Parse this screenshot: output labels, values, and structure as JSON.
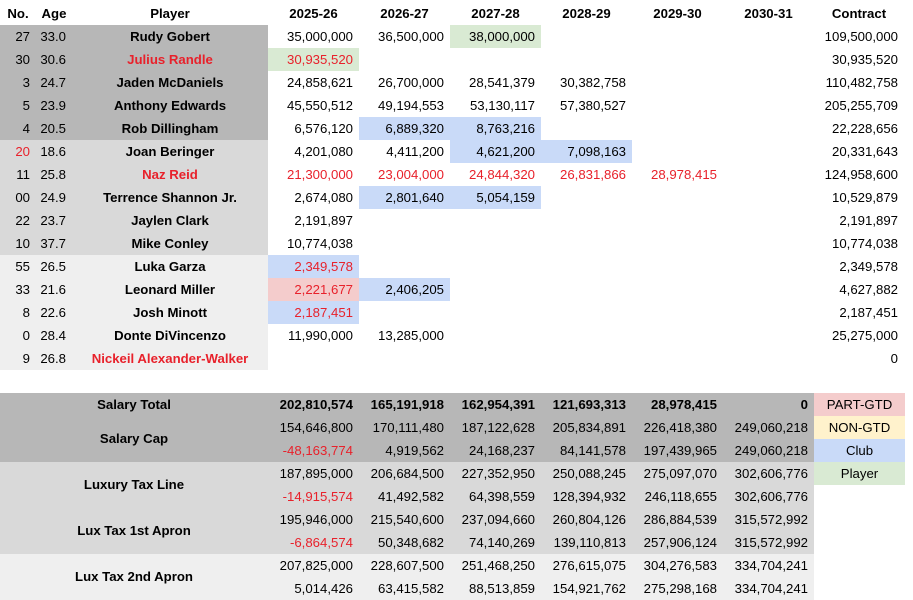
{
  "header": {
    "no": "No.",
    "age": "Age",
    "player": "Player",
    "years": [
      "2025-26",
      "2026-27",
      "2027-28",
      "2028-29",
      "2029-30",
      "2030-31"
    ],
    "contract": "Contract"
  },
  "players": [
    {
      "no": "27",
      "age": "33.0",
      "name": "Rudy Gobert",
      "salaries": [
        "35,000,000",
        "36,500,000",
        "38,000,000",
        "",
        "",
        ""
      ],
      "contract": "109,500,000"
    },
    {
      "no": "30",
      "age": "30.6",
      "name": "Julius Randle",
      "salaries": [
        "30,935,520",
        "",
        "",
        "",
        "",
        ""
      ],
      "contract": "30,935,520"
    },
    {
      "no": "3",
      "age": "24.7",
      "name": "Jaden McDaniels",
      "salaries": [
        "24,858,621",
        "26,700,000",
        "28,541,379",
        "30,382,758",
        "",
        ""
      ],
      "contract": "110,482,758"
    },
    {
      "no": "5",
      "age": "23.9",
      "name": "Anthony Edwards",
      "salaries": [
        "45,550,512",
        "49,194,553",
        "53,130,117",
        "57,380,527",
        "",
        ""
      ],
      "contract": "205,255,709"
    },
    {
      "no": "4",
      "age": "20.5",
      "name": "Rob Dillingham",
      "salaries": [
        "6,576,120",
        "6,889,320",
        "8,763,216",
        "",
        "",
        ""
      ],
      "contract": "22,228,656"
    },
    {
      "no": "20",
      "age": "18.6",
      "name": "Joan Beringer",
      "salaries": [
        "4,201,080",
        "4,411,200",
        "4,621,200",
        "7,098,163",
        "",
        ""
      ],
      "contract": "20,331,643"
    },
    {
      "no": "11",
      "age": "25.8",
      "name": "Naz Reid",
      "salaries": [
        "21,300,000",
        "23,004,000",
        "24,844,320",
        "26,831,866",
        "28,978,415",
        ""
      ],
      "contract": "124,958,600"
    },
    {
      "no": "00",
      "age": "24.9",
      "name": "Terrence Shannon Jr.",
      "salaries": [
        "2,674,080",
        "2,801,640",
        "5,054,159",
        "",
        "",
        ""
      ],
      "contract": "10,529,879"
    },
    {
      "no": "22",
      "age": "23.7",
      "name": "Jaylen Clark",
      "salaries": [
        "2,191,897",
        "",
        "",
        "",
        "",
        ""
      ],
      "contract": "2,191,897"
    },
    {
      "no": "10",
      "age": "37.7",
      "name": "Mike Conley",
      "salaries": [
        "10,774,038",
        "",
        "",
        "",
        "",
        ""
      ],
      "contract": "10,774,038"
    },
    {
      "no": "55",
      "age": "26.5",
      "name": "Luka Garza",
      "salaries": [
        "2,349,578",
        "",
        "",
        "",
        "",
        ""
      ],
      "contract": "2,349,578"
    },
    {
      "no": "33",
      "age": "21.6",
      "name": "Leonard Miller",
      "salaries": [
        "2,221,677",
        "2,406,205",
        "",
        "",
        "",
        ""
      ],
      "contract": "4,627,882"
    },
    {
      "no": "8",
      "age": "22.6",
      "name": "Josh Minott",
      "salaries": [
        "2,187,451",
        "",
        "",
        "",
        "",
        ""
      ],
      "contract": "2,187,451"
    },
    {
      "no": "0",
      "age": "28.4",
      "name": "Donte DiVincenzo",
      "salaries": [
        "11,990,000",
        "13,285,000",
        "",
        "",
        "",
        ""
      ],
      "contract": "25,275,000"
    },
    {
      "no": "9",
      "age": "26.8",
      "name": "Nickeil Alexander-Walker",
      "salaries": [
        "",
        "",
        "",
        "",
        "",
        ""
      ],
      "contract": "0"
    }
  ],
  "totals": {
    "salary_total": {
      "label": "Salary Total",
      "values": [
        "202,810,574",
        "165,191,918",
        "162,954,391",
        "121,693,313",
        "28,978,415",
        "0"
      ]
    },
    "salary_cap": {
      "label": "Salary Cap",
      "line": [
        "154,646,800",
        "170,111,480",
        "187,122,628",
        "205,834,891",
        "226,418,380",
        "249,060,218"
      ],
      "room": [
        "-48,163,774",
        "4,919,562",
        "24,168,237",
        "84,141,578",
        "197,439,965",
        "249,060,218"
      ]
    },
    "lux_tax": {
      "label": "Luxury Tax Line",
      "line": [
        "187,895,000",
        "206,684,500",
        "227,352,950",
        "250,088,245",
        "275,097,070",
        "302,606,776"
      ],
      "room": [
        "-14,915,574",
        "41,492,582",
        "64,398,559",
        "128,394,932",
        "246,118,655",
        "302,606,776"
      ]
    },
    "apron1": {
      "label": "Lux Tax 1st Apron",
      "line": [
        "195,946,000",
        "215,540,600",
        "237,094,660",
        "260,804,126",
        "286,884,539",
        "315,572,992"
      ],
      "room": [
        "-6,864,574",
        "50,348,682",
        "74,140,269",
        "139,110,813",
        "257,906,124",
        "315,572,992"
      ]
    },
    "apron2": {
      "label": "Lux Tax 2nd Apron",
      "line": [
        "207,825,000",
        "228,607,500",
        "251,468,250",
        "276,615,075",
        "304,276,583",
        "334,704,241"
      ],
      "room": [
        "5,014,426",
        "63,415,582",
        "88,513,859",
        "154,921,762",
        "275,298,168",
        "334,704,241"
      ]
    }
  },
  "legend": [
    "PART-GTD",
    "NON-GTD",
    "Club",
    "Player"
  ],
  "colors": {
    "part_gtd": "#f4cccc",
    "non_gtd": "#fff2cc",
    "club": "#c9daf8",
    "player": "#d9ead3",
    "red_text": "#e8212b"
  }
}
